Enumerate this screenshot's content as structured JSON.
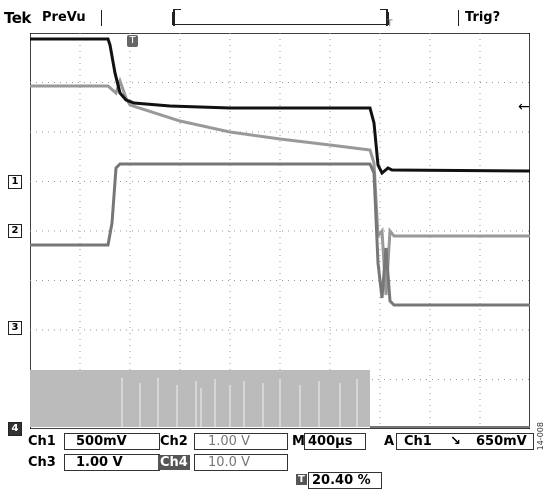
{
  "header": {
    "brand": "Tek",
    "mode": "PreVu",
    "trigger_status": "Trig?"
  },
  "scope": {
    "trigger_marker": "T",
    "channel_markers": [
      "1",
      "2",
      "3",
      "4"
    ],
    "trigger_level_arrow": "←"
  },
  "readouts": {
    "ch1_label": "Ch1",
    "ch1_scale": "500mV",
    "ch2_label": "Ch2",
    "ch2_scale": "1.00 V",
    "ch3_label": "Ch3",
    "ch3_scale": "1.00 V",
    "ch4_label": "Ch4",
    "ch4_scale": "10.0 V",
    "timebase_prefix": "M",
    "timebase": "400μs",
    "trigger_prefix": "A",
    "trigger_source": "Ch1",
    "trigger_slope": "↘",
    "trigger_level": "650mV",
    "trigger_position_marker": "T",
    "trigger_position": "20.40 %"
  },
  "figure_code": "14-008"
}
